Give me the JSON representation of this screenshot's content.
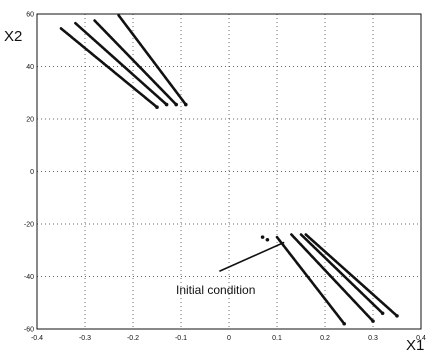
{
  "chart_data": {
    "type": "scatter",
    "xlabel": "X1",
    "ylabel": "X2",
    "xlim": [
      -0.4,
      0.4
    ],
    "ylim": [
      -60,
      60
    ],
    "grid": true,
    "xticks": [
      "-0.4",
      "-0.3",
      "-0.2",
      "-0.1",
      "0",
      "0.1",
      "0.2",
      "0.3",
      "0.4"
    ],
    "yticks": [
      "60",
      "40",
      "20",
      "0",
      "-20",
      "-40",
      "-60"
    ],
    "series": [
      {
        "color": "#111111",
        "segments": [
          [
            [
              -0.35,
              54.5
            ],
            [
              -0.15,
              24.5
            ]
          ],
          [
            [
              -0.32,
              56.5
            ],
            [
              -0.13,
              25.5
            ]
          ],
          [
            [
              -0.28,
              57.5
            ],
            [
              -0.11,
              25.5
            ]
          ],
          [
            [
              -0.23,
              59.5
            ],
            [
              -0.09,
              25.5
            ]
          ]
        ]
      },
      {
        "color": "#111111",
        "segments": [
          [
            [
              0.1,
              -25
            ],
            [
              0.24,
              -58
            ]
          ],
          [
            [
              0.13,
              -24
            ],
            [
              0.3,
              -57
            ]
          ],
          [
            [
              0.15,
              -24
            ],
            [
              0.32,
              -54
            ]
          ],
          [
            [
              0.16,
              -24
            ],
            [
              0.35,
              -55
            ]
          ]
        ]
      },
      {
        "color": "#111111",
        "points": [
          [
            0.07,
            -25
          ],
          [
            0.08,
            -26
          ]
        ]
      }
    ],
    "annotations": [
      {
        "text": "Initial condition",
        "point": [
          0.115,
          -27
        ],
        "arrow_from": [
          -0.02,
          -38
        ]
      }
    ]
  }
}
